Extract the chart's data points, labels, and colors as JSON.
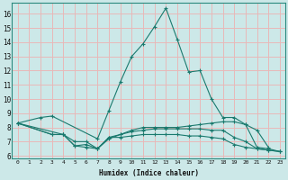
{
  "xlabel": "Humidex (Indice chaleur)",
  "ylabel": "",
  "background_color": "#cce8e8",
  "grid_color": "#e8b8b8",
  "line_color": "#1a7a6e",
  "xlim": [
    -0.5,
    23.5
  ],
  "ylim": [
    5.8,
    16.8
  ],
  "xticks": [
    0,
    1,
    2,
    3,
    4,
    5,
    6,
    7,
    8,
    9,
    10,
    11,
    12,
    13,
    14,
    15,
    16,
    17,
    18,
    19,
    20,
    21,
    22,
    23
  ],
  "yticks": [
    6,
    7,
    8,
    9,
    10,
    11,
    12,
    13,
    14,
    15,
    16
  ],
  "series": [
    {
      "x": [
        0,
        2,
        3,
        7,
        8,
        9,
        10,
        11,
        12,
        13,
        14,
        15,
        16,
        17,
        18,
        19,
        20,
        21,
        22
      ],
      "y": [
        8.3,
        8.7,
        8.8,
        7.2,
        9.2,
        11.2,
        13.0,
        13.9,
        15.1,
        16.4,
        14.2,
        11.9,
        12.0,
        10.0,
        8.7,
        8.7,
        8.2,
        7.8,
        6.6
      ]
    },
    {
      "x": [
        0,
        3,
        4,
        5,
        6,
        7,
        8,
        9,
        10,
        11,
        12,
        13,
        14,
        15,
        16,
        17,
        18,
        19,
        20,
        21,
        22,
        23
      ],
      "y": [
        8.3,
        7.5,
        7.5,
        7.0,
        7.0,
        6.5,
        7.2,
        7.5,
        7.8,
        8.0,
        8.0,
        8.0,
        8.0,
        8.1,
        8.2,
        8.3,
        8.4,
        8.4,
        8.2,
        6.6,
        6.5,
        6.3
      ]
    },
    {
      "x": [
        0,
        3,
        4,
        5,
        6,
        7,
        8,
        9,
        10,
        11,
        12,
        13,
        14,
        15,
        16,
        17,
        18,
        19,
        20,
        21,
        22,
        23
      ],
      "y": [
        8.3,
        7.5,
        7.5,
        6.7,
        6.8,
        6.5,
        7.3,
        7.5,
        7.7,
        7.8,
        7.9,
        7.9,
        7.9,
        7.9,
        7.9,
        7.8,
        7.8,
        7.3,
        7.0,
        6.5,
        6.4,
        6.3
      ]
    },
    {
      "x": [
        0,
        4,
        5,
        6,
        7,
        8,
        9,
        10,
        11,
        12,
        13,
        14,
        15,
        16,
        17,
        18,
        19,
        20,
        21,
        22,
        23
      ],
      "y": [
        8.3,
        7.5,
        6.7,
        6.6,
        6.5,
        7.3,
        7.3,
        7.4,
        7.5,
        7.5,
        7.5,
        7.5,
        7.4,
        7.4,
        7.3,
        7.2,
        6.8,
        6.6,
        6.5,
        6.4,
        6.3
      ]
    }
  ]
}
